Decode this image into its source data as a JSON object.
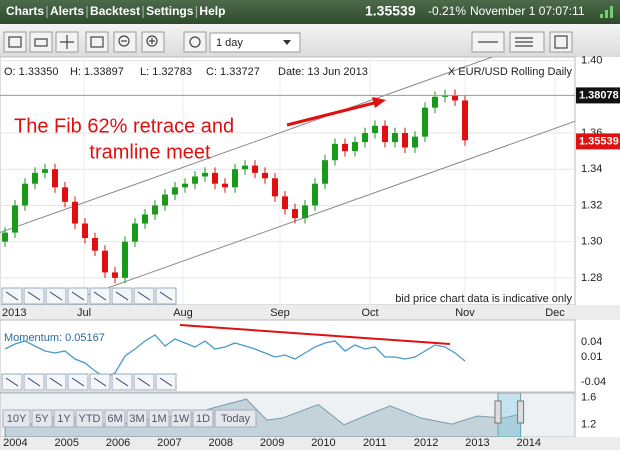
{
  "menu": {
    "items": [
      "Charts",
      "Alerts",
      "Backtest",
      "Settings",
      "Help"
    ],
    "price": "1.35539",
    "change": "-0.21%",
    "time": "November 1 07:07:11"
  },
  "toolbar": {
    "interval": "1 day"
  },
  "info": {
    "open": "O: 1.33350",
    "high": "H: 1.33897",
    "low": "L: 1.32783",
    "close": "C: 1.33727",
    "date": "Date: 13 Jun 2013",
    "symbol": "X EUR/USD Rolling Daily"
  },
  "annotation": [
    "The Fib 62% retrace and",
    "tramline meet"
  ],
  "notice": "bid price chart data is indicative only",
  "range_buttons": [
    "10Y",
    "5Y",
    "1Y",
    "YTD",
    "6M",
    "3M",
    "1M",
    "1W",
    "1D",
    "Today"
  ],
  "chart_data": [
    {
      "type": "candlestick",
      "x": [
        0,
        1,
        2,
        3,
        4,
        5,
        6,
        7,
        8,
        9,
        10,
        11,
        12,
        13,
        14,
        15,
        16,
        17,
        18,
        19,
        20,
        21,
        22,
        23,
        24,
        25,
        26,
        27,
        28,
        29,
        30,
        31,
        32,
        33,
        34,
        35,
        36,
        37,
        38,
        39,
        40,
        41,
        42,
        43,
        44,
        45,
        46
      ],
      "open": [
        1.3,
        1.305,
        1.32,
        1.332,
        1.338,
        1.34,
        1.33,
        1.322,
        1.31,
        1.302,
        1.295,
        1.283,
        1.28,
        1.3,
        1.31,
        1.315,
        1.32,
        1.326,
        1.33,
        1.332,
        1.336,
        1.338,
        1.332,
        1.33,
        1.34,
        1.342,
        1.338,
        1.335,
        1.325,
        1.318,
        1.313,
        1.32,
        1.332,
        1.345,
        1.354,
        1.35,
        1.355,
        1.36,
        1.364,
        1.355,
        1.36,
        1.352,
        1.358,
        1.374,
        1.38,
        1.381,
        1.378
      ],
      "high": [
        1.308,
        1.323,
        1.335,
        1.341,
        1.343,
        1.343,
        1.333,
        1.325,
        1.313,
        1.305,
        1.298,
        1.286,
        1.303,
        1.313,
        1.318,
        1.323,
        1.329,
        1.333,
        1.335,
        1.339,
        1.341,
        1.341,
        1.335,
        1.343,
        1.345,
        1.345,
        1.341,
        1.338,
        1.328,
        1.321,
        1.323,
        1.335,
        1.348,
        1.357,
        1.357,
        1.358,
        1.363,
        1.367,
        1.367,
        1.363,
        1.363,
        1.361,
        1.377,
        1.383,
        1.384,
        1.384,
        1.381
      ],
      "low": [
        1.297,
        1.302,
        1.317,
        1.329,
        1.335,
        1.327,
        1.319,
        1.307,
        1.299,
        1.292,
        1.28,
        1.277,
        1.277,
        1.297,
        1.307,
        1.312,
        1.317,
        1.323,
        1.327,
        1.329,
        1.333,
        1.329,
        1.327,
        1.327,
        1.337,
        1.335,
        1.332,
        1.322,
        1.315,
        1.31,
        1.31,
        1.317,
        1.329,
        1.342,
        1.347,
        1.347,
        1.352,
        1.357,
        1.352,
        1.352,
        1.349,
        1.349,
        1.355,
        1.371,
        1.377,
        1.375,
        1.353
      ],
      "close": [
        1.305,
        1.32,
        1.332,
        1.338,
        1.34,
        1.33,
        1.322,
        1.31,
        1.302,
        1.295,
        1.283,
        1.28,
        1.3,
        1.31,
        1.315,
        1.32,
        1.326,
        1.33,
        1.332,
        1.336,
        1.338,
        1.332,
        1.33,
        1.34,
        1.342,
        1.338,
        1.335,
        1.325,
        1.318,
        1.313,
        1.32,
        1.332,
        1.345,
        1.354,
        1.35,
        1.355,
        1.36,
        1.364,
        1.355,
        1.36,
        1.352,
        1.358,
        1.374,
        1.38,
        1.381,
        1.378,
        1.356
      ],
      "up_color": "#1a9a1a",
      "down_color": "#e01010",
      "xlim": [
        -0.5,
        57
      ],
      "xticks": [
        {
          "value": 7.9,
          "label": "Jul"
        },
        {
          "value": 17.8,
          "label": "Aug"
        },
        {
          "value": 27.5,
          "label": "Sep"
        },
        {
          "value": 36.5,
          "label": "Oct"
        },
        {
          "value": 46,
          "label": "Nov"
        },
        {
          "value": 55,
          "label": "Dec"
        }
      ],
      "x_label": "2013",
      "ylim": [
        1.265,
        1.402
      ],
      "yticks": [
        {
          "value": 1.4,
          "label": "1.40"
        },
        1.36,
        1.34,
        1.32,
        {
          "value": 1.3,
          "label": "1.30"
        },
        1.28
      ],
      "grid": true,
      "trendlines": [
        {
          "x": [
            -0.5,
            57
          ],
          "y": [
            1.305,
            1.4183
          ],
          "color": "#8a8a8a"
        },
        {
          "x": [
            7,
            57
          ],
          "y": [
            1.268,
            1.3665
          ],
          "color": "#8a8a8a"
        }
      ],
      "price_markers": [
        {
          "value": 1.38078,
          "color": "#111111",
          "hline": true
        },
        {
          "value": 1.35539,
          "color": "#e01010",
          "hline": false
        }
      ]
    },
    {
      "type": "line",
      "title": "Momentum: 0.05167",
      "values": [
        0.026,
        0.036,
        0.042,
        0.032,
        0.022,
        0.018,
        0.022,
        0.006,
        -0.002,
        -0.018,
        -0.03,
        -0.022,
        0.012,
        0.026,
        0.042,
        0.054,
        0.032,
        0.046,
        0.038,
        0.03,
        0.042,
        0.026,
        0.03,
        0.038,
        0.032,
        0.026,
        0.018,
        0.01,
        0.014,
        0.006,
        0.018,
        0.03,
        0.038,
        0.042,
        0.022,
        0.034,
        0.026,
        0.03,
        0.01,
        0.01,
        0.006,
        0.01,
        0.022,
        0.034,
        0.03,
        0.018,
        0.002
      ],
      "color": "#4a9ac8",
      "xlim": [
        -0.5,
        57
      ],
      "ylim": [
        -0.06,
        0.084
      ],
      "yticks": [
        0.04,
        0.01,
        -0.04
      ],
      "trendline": {
        "x": [
          17.5,
          44.5
        ],
        "y": [
          0.074,
          0.036
        ],
        "color": "#e01010"
      }
    },
    {
      "type": "area",
      "x": [
        2003.8,
        2004.3,
        2004.9,
        2005.4,
        2005.9,
        2006.4,
        2006.9,
        2007.4,
        2007.9,
        2008.5,
        2008.9,
        2009.2,
        2009.9,
        2010.4,
        2010.9,
        2011.3,
        2011.9,
        2012.5,
        2013.0,
        2013.5,
        2013.84
      ],
      "y": [
        1.25,
        1.21,
        1.36,
        1.27,
        1.18,
        1.26,
        1.32,
        1.35,
        1.46,
        1.58,
        1.27,
        1.3,
        1.5,
        1.2,
        1.36,
        1.48,
        1.3,
        1.21,
        1.33,
        1.3,
        1.36
      ],
      "color": "#7a9aaa",
      "fill": "#c4d2da",
      "xlim": [
        2003.7,
        2014.9
      ],
      "xticks": [
        2004,
        2005,
        2006,
        2007,
        2008,
        2009,
        2010,
        2011,
        2012,
        2013,
        2014
      ],
      "ylim": [
        1.02,
        1.67
      ],
      "yticks": [
        1.6,
        1.2
      ],
      "selection": [
        2013.4,
        2013.84
      ]
    }
  ]
}
